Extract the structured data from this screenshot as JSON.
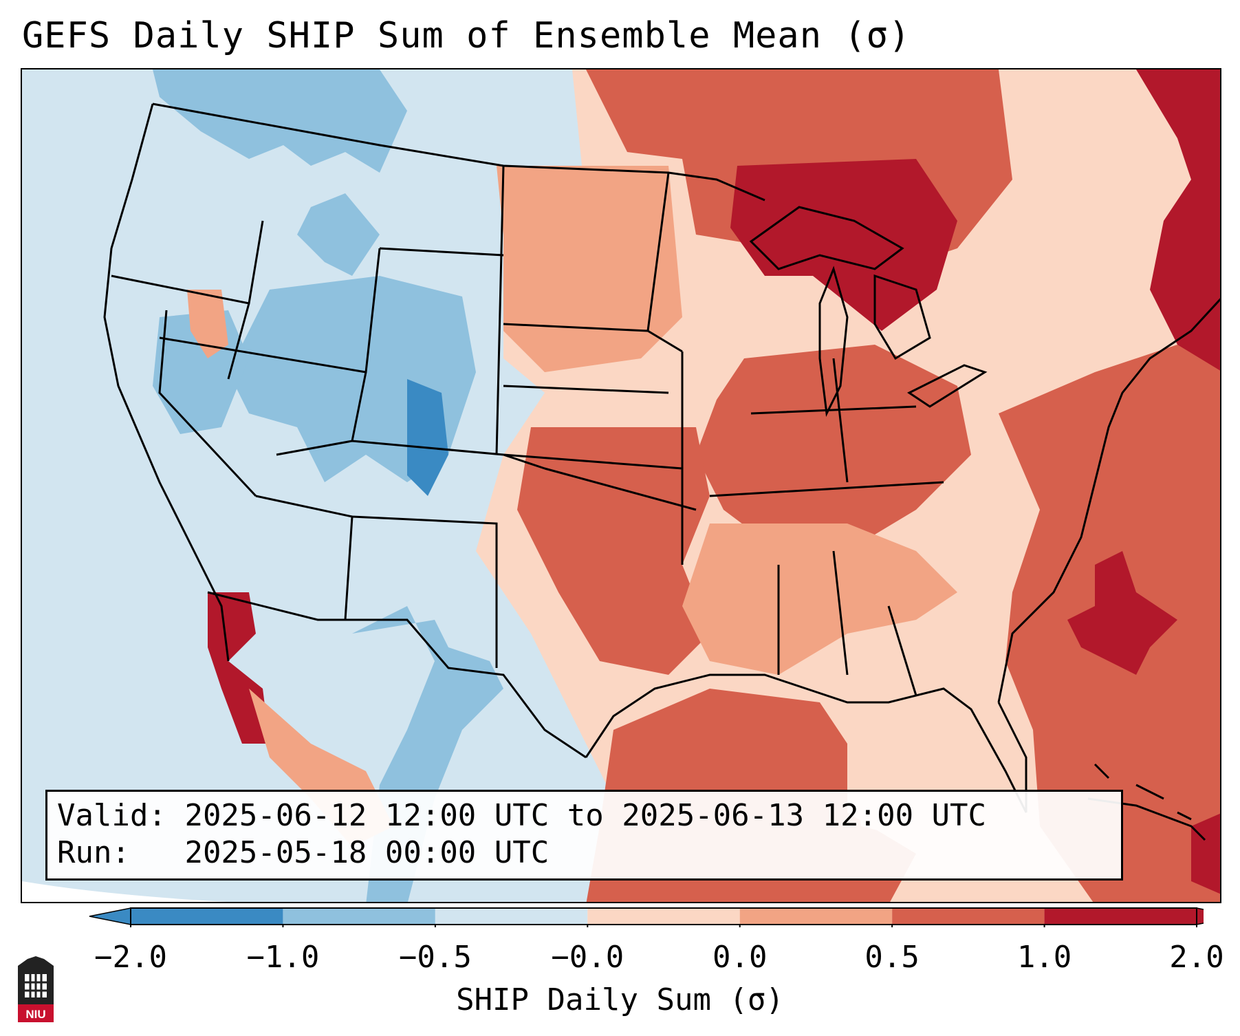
{
  "title": "GEFS Daily SHIP Sum of Ensemble Mean (σ)",
  "info": {
    "valid_label": "Valid:",
    "valid_value": "2025-06-12 12:00 UTC to 2025-06-13 12:00 UTC",
    "run_label": "Run:",
    "run_value": "2025-05-18 00:00 UTC"
  },
  "colorbar": {
    "label": "SHIP Daily Sum (σ)",
    "ticks": [
      "−2.0",
      "−1.0",
      "−0.5",
      "−0.0",
      "0.0",
      "0.5",
      "1.0",
      "2.0"
    ],
    "colors": [
      "#3a8ac3",
      "#8fc1de",
      "#d2e5f0",
      "#f7f7f7",
      "#fbd7c4",
      "#f2a484",
      "#d6604d",
      "#b2182b"
    ],
    "extend": "both"
  },
  "palette": {
    "ocean_neutral": "#d2e5f0",
    "strong_neg": "#3a8ac3",
    "mod_neg": "#8fc1de",
    "weak_pos": "#fbd7c4",
    "mod_pos": "#f2a484",
    "pos": "#d6604d",
    "strong_pos": "#b2182b"
  },
  "logo": {
    "text": "NIU",
    "icon": "university-tower-icon"
  }
}
